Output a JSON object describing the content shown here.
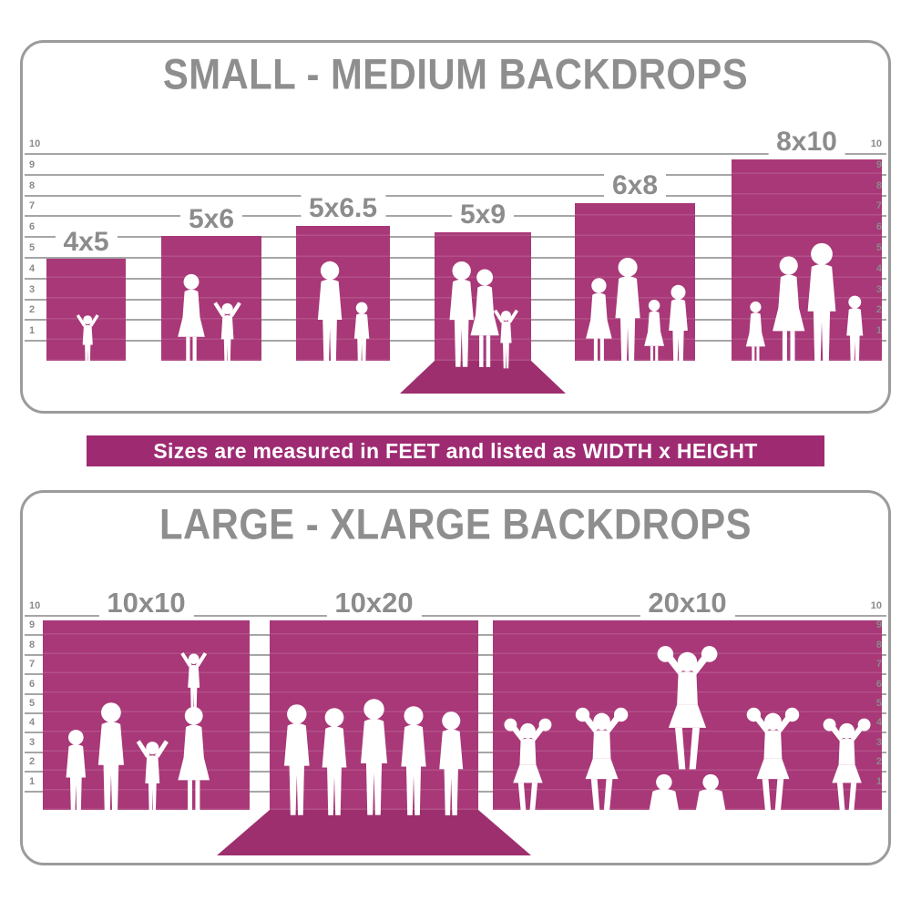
{
  "banner": {
    "text": "Sizes are measured in FEET and listed as WIDTH x HEIGHT"
  },
  "colors": {
    "backdrop_pink": "#A83878",
    "sweep_pink": "#9D2F6E",
    "banner_pink": "#9E2B72",
    "floor_gray": "#CFCFCF",
    "title_gray": "#8E8E8E",
    "label_gray": "#8C8C8C",
    "gridline_gray": "#A6A6A6",
    "panel_border_gray": "#9B9B9B",
    "silhouette_white": "#FFFFFF"
  },
  "panels": [
    {
      "title": "SMALL - MEDIUM BACKDROPS",
      "ruler": {
        "unit": "feet",
        "marks": [
          "1",
          "2",
          "3",
          "4",
          "5",
          "6",
          "7",
          "8",
          "9",
          "10"
        ]
      },
      "backdrops": [
        {
          "label": "4x5",
          "width_ft": 4,
          "height_ft": 5,
          "floor_sweep": false,
          "figures": "toddler-girl"
        },
        {
          "label": "5x6",
          "width_ft": 5,
          "height_ft": 6,
          "floor_sweep": false,
          "figures": "mother-with-cheering-child"
        },
        {
          "label": "5x6.5",
          "width_ft": 5,
          "height_ft": 6.5,
          "floor_sweep": false,
          "figures": "father-with-son"
        },
        {
          "label": "5x9",
          "width_ft": 5,
          "height_ft": 9,
          "floor_sweep": true,
          "figures": "parents-with-child"
        },
        {
          "label": "6x8",
          "width_ft": 6,
          "height_ft": 8,
          "floor_sweep": false,
          "figures": "family-of-four"
        },
        {
          "label": "8x10",
          "width_ft": 8,
          "height_ft": 10,
          "floor_sweep": false,
          "figures": "family-of-four"
        }
      ]
    },
    {
      "title": "LARGE - XLARGE BACKDROPS",
      "ruler": {
        "unit": "feet",
        "marks": [
          "1",
          "2",
          "3",
          "4",
          "5",
          "6",
          "7",
          "8",
          "9",
          "10"
        ]
      },
      "backdrops": [
        {
          "label": "10x10",
          "width_ft": 10,
          "height_ft": 10,
          "floor_sweep": false,
          "figures": "family-of-five-with-child-on-shoulders"
        },
        {
          "label": "10x20",
          "width_ft": 10,
          "height_ft": 20,
          "floor_sweep": true,
          "figures": "group-of-five-men"
        },
        {
          "label": "20x10",
          "width_ft": 20,
          "height_ft": 10,
          "floor_sweep": false,
          "figures": "cheerleading-squad-pyramid"
        }
      ]
    }
  ],
  "chart_data": [
    {
      "type": "bar",
      "title": "SMALL - MEDIUM BACKDROPS",
      "categories": [
        "4x5",
        "5x6",
        "5x6.5",
        "5x9",
        "6x8",
        "8x10"
      ],
      "series": [
        {
          "name": "width_ft",
          "values": [
            4,
            5,
            5,
            5,
            6,
            8
          ]
        },
        {
          "name": "height_ft",
          "values": [
            5,
            6,
            6.5,
            9,
            8,
            10
          ]
        }
      ],
      "xlabel": "backdrop size (WIDTH x HEIGHT)",
      "ylabel": "feet",
      "ylim": [
        0,
        10
      ],
      "grid": true,
      "legend_position": "none"
    },
    {
      "type": "bar",
      "title": "LARGE - XLARGE BACKDROPS",
      "categories": [
        "10x10",
        "10x20",
        "20x10"
      ],
      "series": [
        {
          "name": "width_ft",
          "values": [
            10,
            10,
            20
          ]
        },
        {
          "name": "height_ft",
          "values": [
            10,
            20,
            10
          ]
        }
      ],
      "xlabel": "backdrop size (WIDTH x HEIGHT)",
      "ylabel": "feet",
      "ylim": [
        0,
        10
      ],
      "grid": true,
      "legend_position": "none"
    }
  ]
}
